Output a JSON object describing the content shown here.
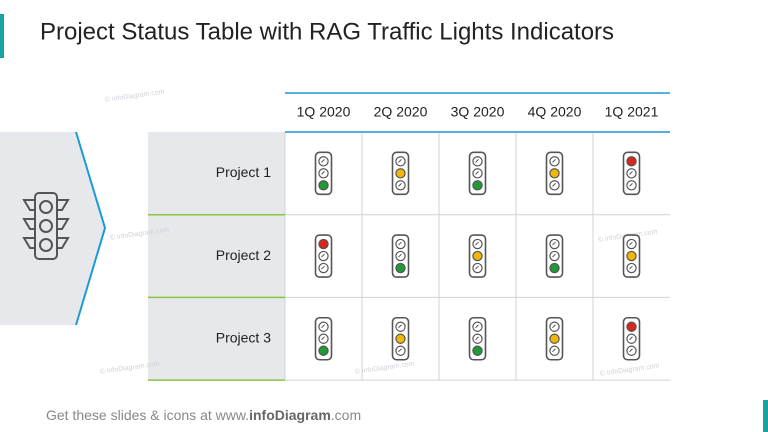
{
  "header": {
    "title": "Project Status Table with RAG Traffic Lights Indicators"
  },
  "table": {
    "columns": [
      "1Q 2020",
      "2Q 2020",
      "3Q 2020",
      "4Q 2020",
      "1Q 2021"
    ],
    "light_colors": [
      "#d9261c",
      "#f2b705",
      "#1f9a35"
    ],
    "rows": [
      {
        "label": "Project 1",
        "status": [
          "#1f9a35",
          "#f2b705",
          "#1f9a35",
          "#f2b705",
          "#d9261c"
        ]
      },
      {
        "label": "Project 2",
        "status": [
          "#d9261c",
          "#1f9a35",
          "#f2b705",
          "#1f9a35",
          "#f2b705"
        ]
      },
      {
        "label": "Project 3",
        "status": [
          "#1f9a35",
          "#f2b705",
          "#1f9a35",
          "#f2b705",
          "#d9261c"
        ]
      }
    ]
  },
  "watermark": "© infoDiagram.com",
  "footer": {
    "prefix": "Get these slides & icons at www.",
    "brand": "infoDiagram",
    "suffix": ".com"
  }
}
